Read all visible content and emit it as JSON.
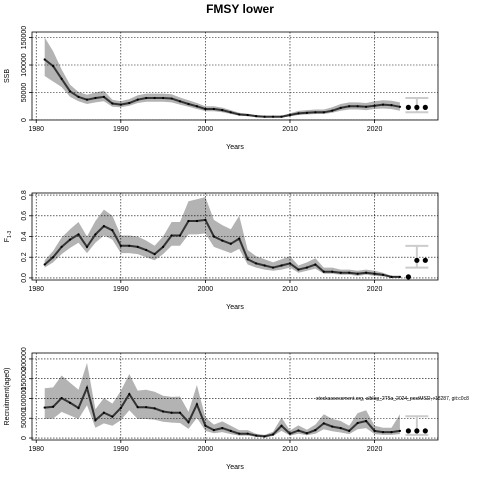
{
  "figure": {
    "title": "FMSY lower"
  },
  "chart_data": [
    {
      "type": "line",
      "name": "ssb-panel",
      "xlabel": "Years",
      "ylabel": "SSB",
      "xlim": [
        1979.5,
        2027.5
      ],
      "ylim": [
        0,
        160000
      ],
      "xticks": [
        1980,
        1990,
        2000,
        2010,
        2020
      ],
      "yticks": [
        0,
        50000,
        100000,
        150000
      ],
      "ytick_labels": [
        "0",
        "50000",
        "100000",
        "150000"
      ],
      "grid": true,
      "colors": {
        "line": "#333333",
        "band": "#b3b3b3",
        "ref": "#cccccc",
        "proj": "#000000"
      },
      "x": [
        1981,
        1982,
        1983,
        1984,
        1985,
        1986,
        1987,
        1988,
        1989,
        1990,
        1991,
        1992,
        1993,
        1994,
        1995,
        1996,
        1997,
        1998,
        1999,
        2000,
        2001,
        2002,
        2003,
        2004,
        2005,
        2006,
        2007,
        2008,
        2009,
        2010,
        2011,
        2012,
        2013,
        2014,
        2015,
        2016,
        2017,
        2018,
        2019,
        2020,
        2021,
        2022,
        2023
      ],
      "y": [
        110000,
        98000,
        75000,
        52000,
        42000,
        37000,
        40000,
        42000,
        30000,
        28000,
        31000,
        37000,
        40000,
        40000,
        40000,
        39000,
        34000,
        29000,
        25000,
        20000,
        20000,
        18000,
        14000,
        10000,
        9000,
        7000,
        6000,
        6000,
        6000,
        9000,
        12000,
        13000,
        14000,
        14000,
        17000,
        22000,
        25000,
        25000,
        24000,
        26000,
        28000,
        27000,
        24000
      ],
      "lower": [
        80000,
        70000,
        60000,
        42000,
        34000,
        29000,
        32000,
        34000,
        24000,
        23000,
        26000,
        31000,
        33000,
        33000,
        33000,
        32000,
        28000,
        24000,
        20000,
        16000,
        16000,
        14000,
        11000,
        8000,
        7000,
        5500,
        4500,
        4500,
        4500,
        6500,
        9000,
        10000,
        11000,
        11000,
        13000,
        17000,
        19000,
        19000,
        18000,
        20000,
        21000,
        20000,
        17000
      ],
      "upper": [
        150000,
        125000,
        92000,
        64000,
        51000,
        46000,
        50000,
        53000,
        37000,
        34000,
        38000,
        45000,
        48000,
        48000,
        48000,
        47000,
        41000,
        36000,
        31000,
        25000,
        25000,
        22500,
        18000,
        13000,
        11500,
        9000,
        8000,
        8000,
        8000,
        12000,
        16500,
        18000,
        19000,
        19000,
        23000,
        29000,
        32000,
        32000,
        31000,
        34000,
        36000,
        35000,
        32000
      ],
      "projection": {
        "x": [
          2024,
          2025,
          2026
        ],
        "y": [
          23000,
          23000,
          23000
        ],
        "lower": 14000,
        "upper": 40000
      }
    },
    {
      "type": "line",
      "name": "fishing-mortality-panel",
      "xlabel": "Years",
      "ylabel": "F",
      "ylabel_sub": "1-3",
      "xlim": [
        1979.5,
        2027.5
      ],
      "ylim": [
        -0.02,
        0.82
      ],
      "xticks": [
        1980,
        1990,
        2000,
        2010,
        2020
      ],
      "yticks": [
        0,
        0.2,
        0.4,
        0.6,
        0.8
      ],
      "ytick_labels": [
        "0.0",
        "0.2",
        "0.4",
        "0.6",
        "0.8"
      ],
      "grid": true,
      "colors": {
        "line": "#333333",
        "band": "#b3b3b3",
        "ref": "#cccccc",
        "proj": "#000000"
      },
      "x": [
        1981,
        1982,
        1983,
        1984,
        1985,
        1986,
        1987,
        1988,
        1989,
        1990,
        1991,
        1992,
        1993,
        1994,
        1995,
        1996,
        1997,
        1998,
        1999,
        2000,
        2001,
        2002,
        2003,
        2004,
        2005,
        2006,
        2007,
        2008,
        2009,
        2010,
        2011,
        2012,
        2013,
        2014,
        2015,
        2016,
        2017,
        2018,
        2019,
        2020,
        2021,
        2022,
        2023
      ],
      "y": [
        0.13,
        0.2,
        0.3,
        0.37,
        0.42,
        0.3,
        0.42,
        0.5,
        0.46,
        0.31,
        0.31,
        0.3,
        0.27,
        0.23,
        0.3,
        0.41,
        0.41,
        0.55,
        0.55,
        0.56,
        0.4,
        0.36,
        0.33,
        0.38,
        0.18,
        0.14,
        0.12,
        0.1,
        0.12,
        0.14,
        0.08,
        0.1,
        0.13,
        0.06,
        0.06,
        0.05,
        0.05,
        0.04,
        0.05,
        0.04,
        0.03,
        0.01,
        0.01
      ],
      "lower": [
        0.1,
        0.15,
        0.23,
        0.29,
        0.34,
        0.24,
        0.34,
        0.41,
        0.37,
        0.24,
        0.24,
        0.23,
        0.2,
        0.17,
        0.23,
        0.31,
        0.31,
        0.42,
        0.42,
        0.43,
        0.3,
        0.27,
        0.24,
        0.28,
        0.13,
        0.1,
        0.08,
        0.07,
        0.08,
        0.1,
        0.05,
        0.07,
        0.09,
        0.04,
        0.04,
        0.03,
        0.03,
        0.02,
        0.03,
        0.02,
        0.015,
        0.005,
        0.005
      ],
      "upper": [
        0.17,
        0.26,
        0.39,
        0.47,
        0.54,
        0.4,
        0.55,
        0.66,
        0.6,
        0.41,
        0.41,
        0.4,
        0.36,
        0.31,
        0.4,
        0.54,
        0.54,
        0.74,
        0.76,
        0.78,
        0.56,
        0.51,
        0.47,
        0.6,
        0.27,
        0.21,
        0.18,
        0.15,
        0.18,
        0.21,
        0.12,
        0.15,
        0.19,
        0.1,
        0.1,
        0.08,
        0.08,
        0.07,
        0.08,
        0.07,
        0.05,
        0.02,
        0.02
      ],
      "projection": {
        "x": [
          2024,
          2025,
          2026
        ],
        "y": [
          0.01,
          0.17,
          0.17
        ],
        "lower": 0.1,
        "upper": 0.31
      }
    },
    {
      "type": "line",
      "name": "recruitment-panel",
      "xlabel": "Years",
      "ylabel": "Recruitment(age0)",
      "xlim": [
        1979.5,
        2027.5
      ],
      "ylim": [
        -5000,
        215000
      ],
      "xticks": [
        1980,
        1990,
        2000,
        2010,
        2020
      ],
      "yticks": [
        0,
        50000,
        100000,
        150000,
        200000
      ],
      "ytick_labels": [
        "0",
        "50000",
        "100000",
        "150000",
        "200000"
      ],
      "grid": true,
      "annotation": "stockassessment.org, alblog_2T5a_2024_postMSD, r18287, git:c0c8",
      "colors": {
        "line": "#333333",
        "band": "#b3b3b3",
        "ref": "#cccccc",
        "proj": "#000000"
      },
      "x": [
        1981,
        1982,
        1983,
        1984,
        1985,
        1986,
        1987,
        1988,
        1989,
        1990,
        1991,
        1992,
        1993,
        1994,
        1995,
        1996,
        1997,
        1998,
        1999,
        2000,
        2001,
        2002,
        2003,
        2004,
        2005,
        2006,
        2007,
        2008,
        2009,
        2010,
        2011,
        2012,
        2013,
        2014,
        2015,
        2016,
        2017,
        2018,
        2019,
        2020,
        2021,
        2022,
        2023
      ],
      "y": [
        77000,
        79000,
        101000,
        89000,
        76000,
        127000,
        45000,
        64000,
        54000,
        76000,
        111000,
        78000,
        78000,
        75000,
        67000,
        64000,
        64000,
        40000,
        85000,
        31000,
        20000,
        25000,
        18000,
        11000,
        11000,
        6000,
        4000,
        9000,
        31000,
        11000,
        19000,
        12000,
        20000,
        37000,
        29000,
        25000,
        18000,
        38000,
        43000,
        18000,
        15000,
        15000,
        18000
      ],
      "lower": [
        48000,
        49000,
        66000,
        57000,
        48000,
        83000,
        26000,
        37000,
        31000,
        45000,
        70000,
        48000,
        48000,
        46000,
        41000,
        39000,
        38000,
        23000,
        51000,
        18000,
        12000,
        15000,
        10000,
        6000,
        6000,
        3000,
        2000,
        5000,
        18000,
        6000,
        11000,
        7000,
        11000,
        22000,
        17000,
        14000,
        10000,
        22000,
        25000,
        10000,
        8000,
        8000,
        10000
      ],
      "upper": [
        126000,
        128000,
        158000,
        140000,
        122000,
        190000,
        73000,
        101000,
        87000,
        119000,
        162000,
        120000,
        122000,
        117000,
        107000,
        104000,
        105000,
        66000,
        134000,
        52000,
        34000,
        42000,
        31000,
        20000,
        20000,
        11000,
        8000,
        16000,
        52000,
        19000,
        32000,
        21000,
        34000,
        60000,
        48000,
        43000,
        31000,
        63000,
        70000,
        31000,
        26000,
        26000,
        60000
      ],
      "projection": {
        "x": [
          2024,
          2025,
          2026
        ],
        "y": [
          18000,
          18000,
          18000
        ],
        "lower": 8000,
        "upper": 55000
      }
    }
  ]
}
